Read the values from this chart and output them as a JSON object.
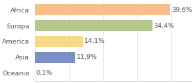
{
  "categories": [
    "Africa",
    "Europa",
    "America",
    "Asia",
    "Oceania"
  ],
  "values": [
    39.6,
    34.4,
    14.1,
    11.9,
    0.1
  ],
  "labels": [
    "39,6%",
    "34,4%",
    "14,1%",
    "11,9%",
    "0,1%"
  ],
  "bar_colors": [
    "#f5be8a",
    "#b5c98e",
    "#f7d98c",
    "#7b8fc4",
    "#ffffff"
  ],
  "background_color": "#ffffff",
  "xlim": [
    0,
    46
  ],
  "label_fontsize": 6.8,
  "tick_fontsize": 6.8,
  "grid_color": "#dddddd",
  "border_color": "#cccccc"
}
